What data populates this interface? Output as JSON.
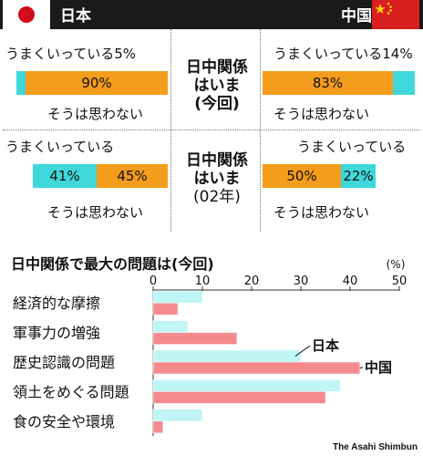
{
  "header": {
    "japan_label": "日本",
    "china_label": "中国"
  },
  "survey": {
    "current": {
      "center_label": [
        "日中関係",
        "はいま",
        "(今回)"
      ],
      "japan": {
        "good_label": "うまくいっている5%",
        "bad_label": "そうは思わない",
        "good": 5,
        "bad": 90,
        "bad_text": "90%"
      },
      "china": {
        "good_label": "うまくいっている14%",
        "bad_label": "そうは思わない",
        "good": 14,
        "bad": 83,
        "bad_text": "83%"
      }
    },
    "y2002": {
      "center_label": [
        "日中関係",
        "はいま",
        "(02年)"
      ],
      "japan": {
        "good_label": "うまくいっている",
        "bad_label": "そうは思わない",
        "good": 41,
        "bad": 45,
        "good_text": "41%",
        "bad_text": "45%"
      },
      "china": {
        "good_label": "うまくいっている",
        "bad_label": "そうは思わない",
        "good": 22,
        "bad": 50,
        "good_text": "22%",
        "bad_text": "50%"
      }
    }
  },
  "chart_data": {
    "type": "bar",
    "orientation": "horizontal",
    "title": "日中関係で最大の問題は(今回)",
    "unit": "(%)",
    "categories": [
      "経済的な摩擦",
      "軍事力の増強",
      "歴史認識の問題",
      "領土をめぐる問題",
      "食の安全や環境"
    ],
    "series": [
      {
        "name": "日本",
        "values": [
          10,
          7,
          30,
          38,
          10
        ]
      },
      {
        "name": "中国",
        "values": [
          5,
          17,
          42,
          35,
          2
        ]
      }
    ],
    "xlim": [
      0,
      50
    ],
    "xticks": [
      "0",
      "10",
      "20",
      "30",
      "40",
      "50"
    ]
  },
  "colors": {
    "japan_bar": "#bff5f5",
    "china_bar": "#f48a8e",
    "good": "#3ed8da",
    "bad": "#f49c1c",
    "background": "#1a1a1a",
    "panel": "#ffffff"
  },
  "credit": "The Asahi Shimbun"
}
